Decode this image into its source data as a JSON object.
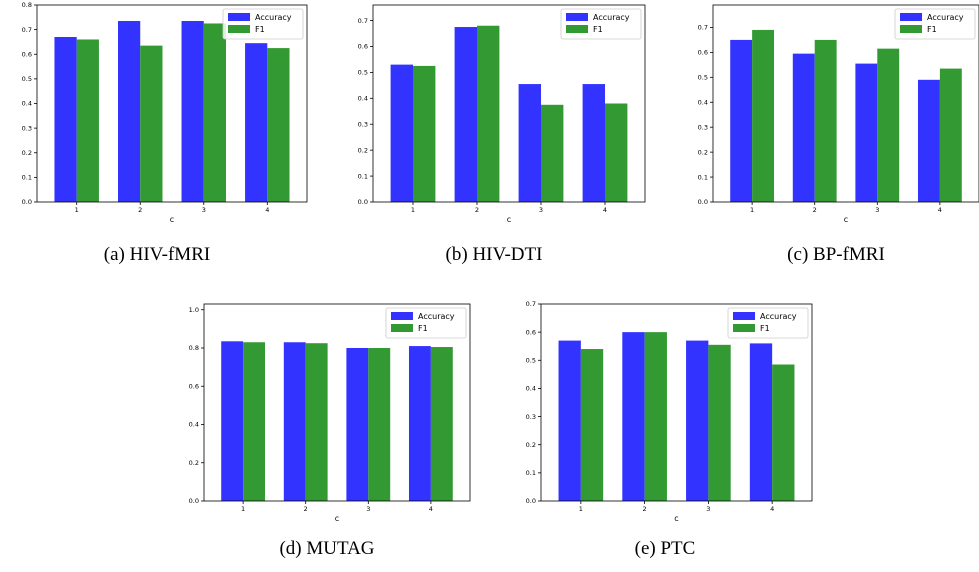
{
  "figure": {
    "panels": [
      {
        "caption": "(a)  HIV-fMRI"
      },
      {
        "caption": "(b)  HIV-DTI"
      },
      {
        "caption": "(c)  BP-fMRI"
      },
      {
        "caption": "(d)  MUTAG"
      },
      {
        "caption": "(e)  PTC"
      }
    ]
  },
  "colors": {
    "accuracy": "#3333ff",
    "f1": "#339933"
  },
  "chart_data": [
    {
      "type": "bar",
      "xlabel": "c",
      "ylabel": "",
      "categories": [
        "1",
        "2",
        "3",
        "4"
      ],
      "ylim": [
        0,
        0.8
      ],
      "yticks": [
        0.0,
        0.1,
        0.2,
        0.3,
        0.4,
        0.5,
        0.6,
        0.7,
        0.8
      ],
      "legend": "top-right",
      "series": [
        {
          "name": "Accuracy",
          "values": [
            0.67,
            0.735,
            0.735,
            0.645
          ]
        },
        {
          "name": "F1",
          "values": [
            0.66,
            0.635,
            0.725,
            0.625
          ]
        }
      ]
    },
    {
      "type": "bar",
      "xlabel": "c",
      "ylabel": "",
      "categories": [
        "1",
        "2",
        "3",
        "4"
      ],
      "ylim": [
        0,
        0.76
      ],
      "yticks": [
        0.0,
        0.1,
        0.2,
        0.3,
        0.4,
        0.5,
        0.6,
        0.7
      ],
      "legend": "top-right",
      "series": [
        {
          "name": "Accuracy",
          "values": [
            0.53,
            0.675,
            0.455,
            0.455
          ]
        },
        {
          "name": "F1",
          "values": [
            0.525,
            0.68,
            0.375,
            0.38
          ]
        }
      ]
    },
    {
      "type": "bar",
      "xlabel": "c",
      "ylabel": "",
      "categories": [
        "1",
        "2",
        "3",
        "4"
      ],
      "ylim": [
        0,
        0.79
      ],
      "yticks": [
        0.0,
        0.1,
        0.2,
        0.3,
        0.4,
        0.5,
        0.6,
        0.7
      ],
      "legend": "top-right",
      "series": [
        {
          "name": "Accuracy",
          "values": [
            0.65,
            0.595,
            0.555,
            0.49
          ]
        },
        {
          "name": "F1",
          "values": [
            0.69,
            0.65,
            0.615,
            0.535
          ]
        }
      ]
    },
    {
      "type": "bar",
      "xlabel": "c",
      "ylabel": "",
      "categories": [
        "1",
        "2",
        "3",
        "4"
      ],
      "ylim": [
        0,
        1.03
      ],
      "yticks": [
        0.0,
        0.2,
        0.4,
        0.6,
        0.8,
        1.0
      ],
      "legend": "top-right",
      "series": [
        {
          "name": "Accuracy",
          "values": [
            0.835,
            0.83,
            0.8,
            0.81
          ]
        },
        {
          "name": "F1",
          "values": [
            0.83,
            0.825,
            0.8,
            0.805
          ]
        }
      ]
    },
    {
      "type": "bar",
      "xlabel": "c",
      "ylabel": "",
      "categories": [
        "1",
        "2",
        "3",
        "4"
      ],
      "ylim": [
        0,
        0.7
      ],
      "yticks": [
        0.0,
        0.1,
        0.2,
        0.3,
        0.4,
        0.5,
        0.6,
        0.7
      ],
      "legend": "top-right",
      "series": [
        {
          "name": "Accuracy",
          "values": [
            0.57,
            0.6,
            0.57,
            0.56
          ]
        },
        {
          "name": "F1",
          "values": [
            0.54,
            0.6,
            0.555,
            0.485
          ]
        }
      ]
    }
  ]
}
